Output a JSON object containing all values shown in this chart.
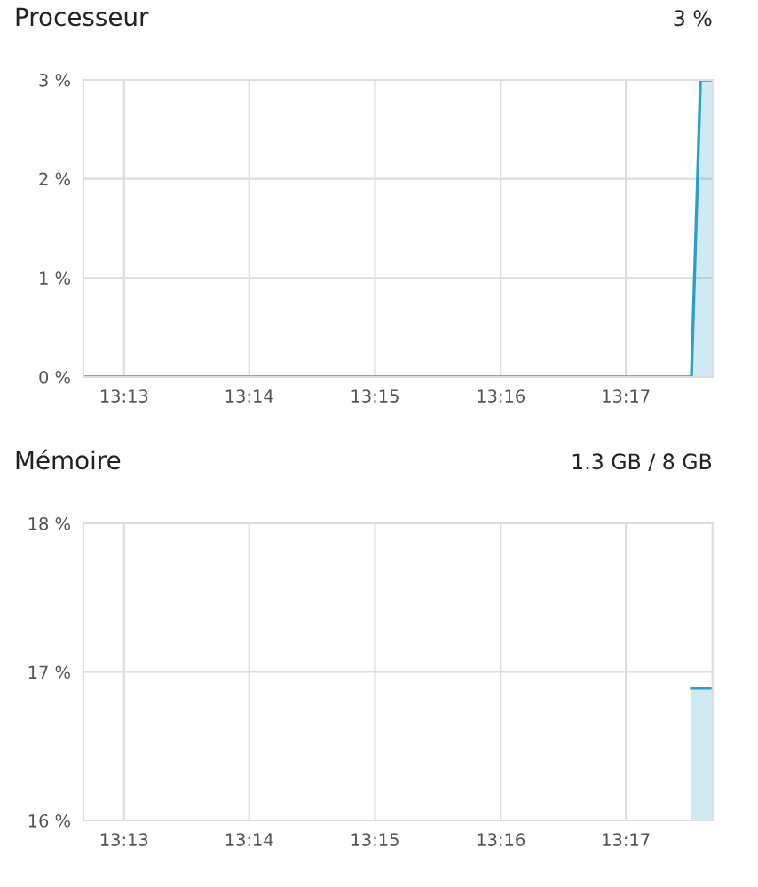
{
  "chart_data": [
    {
      "type": "area",
      "title": "Processeur",
      "subtitle": "3 %",
      "x": [
        13.2113,
        13.292,
        13.2932,
        13.2948
      ],
      "series": [
        {
          "color": "#2a9fc9",
          "values": [
            0,
            0,
            3,
            3
          ]
        }
      ],
      "xlim": [
        13.2113,
        13.2948
      ],
      "xticks": [
        {
          "value": 13.2167,
          "label": "13:13"
        },
        {
          "value": 13.2333,
          "label": "13:14"
        },
        {
          "value": 13.25,
          "label": "13:15"
        },
        {
          "value": 13.2667,
          "label": "13:16"
        },
        {
          "value": 13.2833,
          "label": "13:17"
        }
      ],
      "ylim": [
        0,
        3
      ],
      "yticks": [
        {
          "value": 0,
          "label": "0 %"
        },
        {
          "value": 1,
          "label": "1 %"
        },
        {
          "value": 2,
          "label": "2 %"
        },
        {
          "value": 3,
          "label": "3 %"
        }
      ],
      "grid": true,
      "legend": false
    },
    {
      "type": "area",
      "title": "Mémoire",
      "subtitle": "1.3 GB / 8 GB",
      "x": [
        13.292,
        13.2948
      ],
      "series": [
        {
          "color": "#2a9fc9",
          "values": [
            16.89,
            16.89
          ]
        }
      ],
      "xlim": [
        13.2113,
        13.2948
      ],
      "xticks": [
        {
          "value": 13.2167,
          "label": "13:13"
        },
        {
          "value": 13.2333,
          "label": "13:14"
        },
        {
          "value": 13.25,
          "label": "13:15"
        },
        {
          "value": 13.2667,
          "label": "13:16"
        },
        {
          "value": 13.2833,
          "label": "13:17"
        }
      ],
      "ylim": [
        16,
        18
      ],
      "yticks": [
        {
          "value": 16,
          "label": "16 %"
        },
        {
          "value": 17,
          "label": "17 %"
        },
        {
          "value": 18,
          "label": "18 %"
        }
      ],
      "grid": true,
      "legend": false
    }
  ]
}
